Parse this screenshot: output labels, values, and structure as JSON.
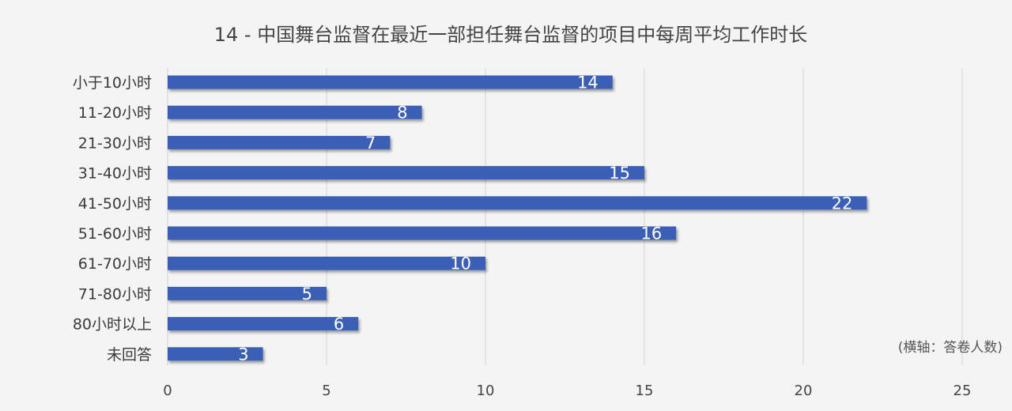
{
  "chart_data": {
    "type": "bar",
    "orientation": "horizontal",
    "title": "14 - 中国舞台监督在最近一部担任舞台监督的项目中每周平均工作时长",
    "categories": [
      "小于10小时",
      "11-20小时",
      "21-30小时",
      "31-40小时",
      "41-50小时",
      "51-60小时",
      "61-70小时",
      "71-80小时",
      "80小时以上",
      "未回答"
    ],
    "values": [
      14,
      8,
      7,
      15,
      22,
      16,
      10,
      5,
      6,
      3
    ],
    "xlim": [
      0,
      25
    ],
    "xticks": [
      0,
      5,
      10,
      15,
      20,
      25
    ],
    "xlabel": "(横轴：答卷人数)",
    "ylabel": "",
    "grid": "vertical",
    "bar_color": "#3a5fb5",
    "label_color": "#ffffff"
  }
}
